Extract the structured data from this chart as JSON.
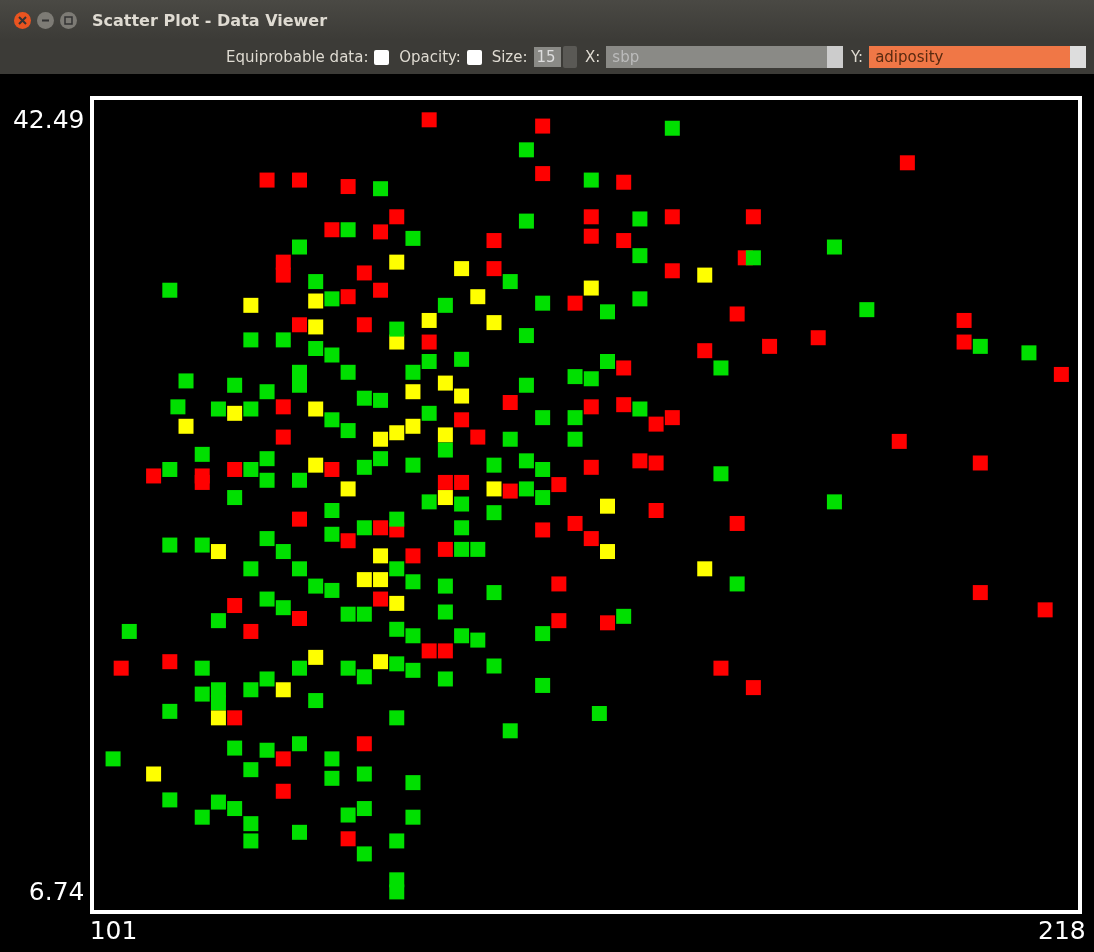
{
  "chart_data": {
    "type": "scatter",
    "title": "Scatter Plot - Data Viewer",
    "xlabel": "sbp",
    "ylabel": "adiposity",
    "annotations": [
      "Equiprobable data:",
      "Opacity:",
      "Size:",
      "15",
      "X:",
      "Y:"
    ],
    "xlim": [
      98.4,
      220.3
    ],
    "ylim": [
      5.81,
      43.5
    ],
    "xticks": [
      101,
      218
    ],
    "yticks": [
      6.74,
      42.49
    ],
    "grid": false,
    "marker": "square",
    "series": [
      {
        "color": "#ff0000",
        "x": [
          140,
          154,
          199,
          154,
          120,
          124,
          130,
          164,
          180,
          170,
          160,
          136,
          128,
          134,
          160,
          164,
          148,
          179,
          122,
          122,
          132,
          148,
          170,
          134,
          130,
          158,
          178,
          124,
          132,
          140,
          174,
          182,
          188,
          206,
          206,
          218,
          164,
          150,
          160,
          164,
          122,
          144,
          168,
          198,
          122,
          170,
          146,
          106,
          116,
          112,
          112,
          166,
          168,
          160,
          208,
          142,
          144,
          156,
          150,
          128,
          124,
          168,
          178,
          158,
          154,
          136,
          134,
          130,
          138,
          142,
          160,
          156,
          208,
          216,
          162,
          156,
          116,
          118,
          124,
          134,
          140,
          142,
          102,
          108,
          176,
          180,
          116,
          132,
          122,
          122,
          130
        ],
        "values": [
          42.49,
          42.2,
          40.5,
          40.0,
          39.7,
          39.7,
          39.4,
          39.6,
          38.0,
          38.0,
          38.0,
          38.0,
          37.4,
          37.3,
          37.1,
          36.9,
          36.9,
          36.1,
          35.9,
          35.3,
          35.4,
          35.6,
          35.5,
          34.6,
          34.3,
          34.0,
          33.5,
          33.0,
          33.0,
          32.2,
          31.8,
          32.0,
          32.4,
          33.2,
          32.2,
          30.7,
          31.0,
          29.4,
          29.2,
          29.3,
          29.2,
          28.6,
          28.4,
          27.6,
          27.8,
          28.7,
          27.8,
          26.0,
          26.3,
          25.7,
          26.0,
          26.7,
          26.6,
          26.4,
          26.6,
          25.7,
          25.7,
          25.6,
          25.3,
          26.3,
          24.0,
          24.4,
          23.8,
          23.8,
          23.5,
          23.5,
          23.6,
          23.0,
          22.3,
          22.6,
          23.1,
          21.0,
          20.6,
          19.8,
          19.2,
          19.3,
          20.0,
          18.8,
          19.4,
          20.3,
          17.9,
          17.9,
          17.1,
          17.4,
          17.1,
          16.2,
          14.8,
          13.6,
          12.9,
          11.4,
          9.2
        ]
      },
      {
        "color": "#ffff00",
        "x": [
          144,
          136,
          146,
          148,
          126,
          118,
          126,
          136,
          140,
          110,
          116,
          126,
          144,
          142,
          138,
          134,
          136,
          138,
          142,
          126,
          130,
          148,
          142,
          162,
          162,
          134,
          114,
          134,
          136,
          174,
          134,
          126,
          114,
          122,
          106,
          160,
          132,
          174
        ],
        "values": [
          35.6,
          35.9,
          34.3,
          33.1,
          34.1,
          33.9,
          32.9,
          32.2,
          33.2,
          28.3,
          28.9,
          29.1,
          29.7,
          30.3,
          29.9,
          27.7,
          28.0,
          28.3,
          27.9,
          26.5,
          25.4,
          25.4,
          25.0,
          24.6,
          22.5,
          22.3,
          22.5,
          21.2,
          20.1,
          21.7,
          17.4,
          17.6,
          14.8,
          16.1,
          12.2,
          34.7,
          21.2,
          35.3
        ]
      },
      {
        "color": "#00e000",
        "x": [
          170,
          152,
          134,
          160,
          152,
          166,
          130,
          138,
          124,
          166,
          180,
          190,
          108,
          126,
          128,
          150,
          154,
          166,
          162,
          194,
          142,
          208,
          214,
          176,
          162,
          152,
          144,
          118,
          122,
          126,
          130,
          110,
          116,
          120,
          124,
          128,
          136,
          138,
          140,
          132,
          152,
          158,
          160,
          109,
          114,
          118,
          124,
          134,
          128,
          130,
          154,
          158,
          166,
          158,
          150,
          152,
          148,
          142,
          140,
          138,
          134,
          132,
          120,
          112,
          108,
          176,
          190,
          154,
          152,
          154,
          148,
          144,
          144,
          140,
          136,
          128,
          124,
          120,
          118,
          116,
          108,
          112,
          118,
          122,
          120,
          124,
          128,
          132,
          136,
          138,
          144,
          146,
          142,
          148,
          142,
          120,
          122,
          126,
          128,
          130,
          132,
          136,
          138,
          144,
          146,
          154,
          164,
          178,
          114,
          103,
          112,
          112,
          114,
          118,
          120,
          124,
          126,
          130,
          132,
          136,
          138,
          142,
          148,
          154,
          161,
          150,
          108,
          114,
          116,
          118,
          120,
          124,
          128,
          128,
          132,
          136,
          138,
          101,
          108,
          112,
          114,
          116,
          118,
          118,
          124,
          130,
          132,
          132,
          136,
          138,
          136,
          136
        ],
        "values": [
          42.1,
          41.1,
          39.3,
          39.7,
          37.8,
          37.9,
          37.4,
          37.0,
          36.6,
          36.2,
          36.1,
          36.6,
          34.6,
          35.0,
          34.2,
          35.0,
          34.0,
          34.2,
          33.6,
          33.7,
          33.9,
          32.0,
          31.7,
          31.0,
          31.3,
          32.5,
          31.4,
          32.3,
          32.3,
          31.9,
          30.8,
          30.4,
          30.2,
          29.9,
          30.8,
          31.6,
          32.8,
          30.8,
          31.3,
          29.6,
          30.2,
          30.6,
          30.5,
          29.2,
          29.1,
          29.1,
          30.2,
          29.5,
          28.6,
          28.1,
          28.7,
          28.7,
          29.1,
          27.7,
          27.7,
          26.7,
          26.5,
          27.2,
          28.9,
          26.5,
          26.8,
          26.4,
          26.8,
          27.0,
          26.3,
          26.1,
          24.8,
          26.3,
          25.4,
          25.0,
          24.3,
          24.7,
          23.6,
          24.8,
          24.0,
          24.4,
          25.8,
          25.8,
          26.3,
          25.0,
          22.8,
          22.8,
          21.7,
          22.5,
          23.1,
          21.7,
          23.3,
          23.6,
          21.7,
          21.1,
          22.6,
          22.6,
          20.9,
          20.6,
          19.7,
          20.3,
          19.9,
          20.9,
          20.7,
          19.6,
          19.6,
          18.9,
          18.6,
          18.6,
          18.4,
          18.7,
          19.5,
          21.0,
          19.3,
          18.8,
          17.1,
          15.9,
          16.1,
          16.1,
          16.6,
          17.1,
          15.6,
          17.1,
          16.7,
          17.3,
          17.0,
          16.6,
          17.2,
          16.3,
          15.0,
          14.2,
          15.1,
          15.5,
          13.4,
          12.4,
          13.3,
          13.6,
          12.9,
          12.0,
          12.2,
          14.8,
          11.8,
          12.9,
          11.0,
          10.2,
          10.9,
          10.6,
          9.9,
          9.1,
          9.5,
          10.3,
          10.6,
          8.5,
          9.1,
          10.2,
          6.74,
          7.3
        ]
      }
    ]
  }
}
